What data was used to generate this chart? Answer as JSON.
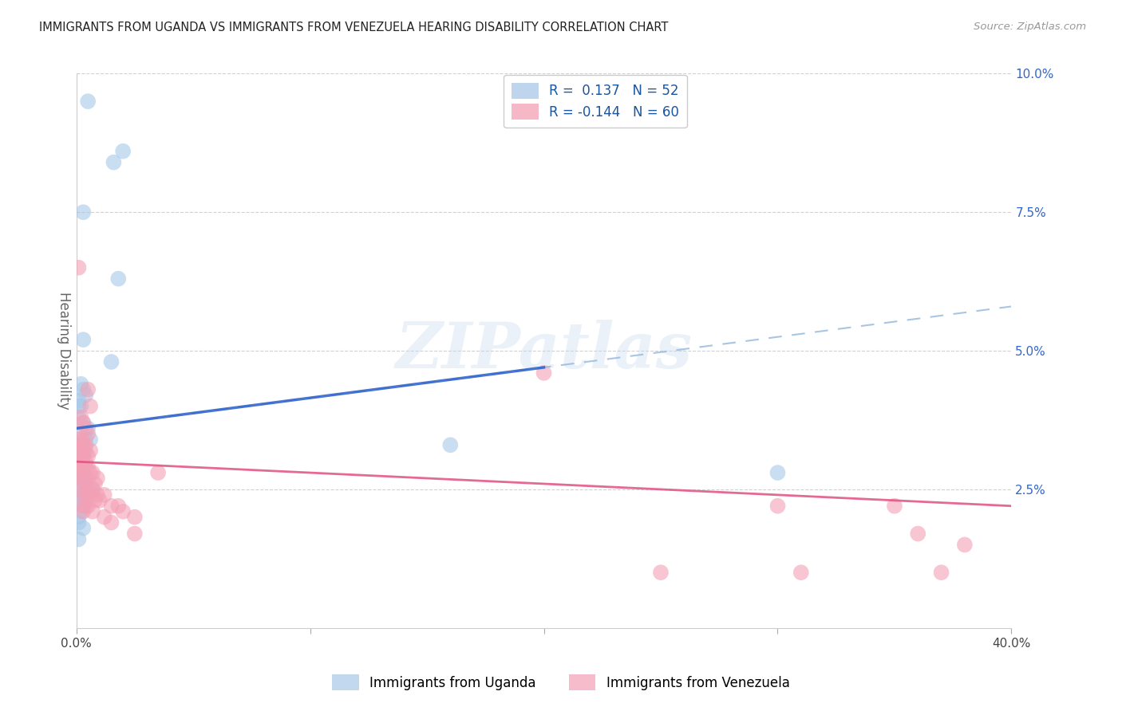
{
  "title": "IMMIGRANTS FROM UGANDA VS IMMIGRANTS FROM VENEZUELA HEARING DISABILITY CORRELATION CHART",
  "source": "Source: ZipAtlas.com",
  "ylabel": "Hearing Disability",
  "xlim": [
    0.0,
    0.4
  ],
  "ylim": [
    0.0,
    0.1
  ],
  "xticks": [
    0.0,
    0.1,
    0.2,
    0.3,
    0.4
  ],
  "yticks": [
    0.025,
    0.05,
    0.075,
    0.1
  ],
  "ytick_labels": [
    "2.5%",
    "5.0%",
    "7.5%",
    "10.0%"
  ],
  "xtick_labels": [
    "0.0%",
    "",
    "",
    "",
    "40.0%"
  ],
  "uganda_color": "#a8c8e8",
  "venezuela_color": "#f4a0b5",
  "uganda_line_color": "#3366cc",
  "venezuela_line_color": "#e05080",
  "dashed_line_color": "#99bbdd",
  "uganda_R": 0.137,
  "uganda_N": 52,
  "venezuela_R": -0.144,
  "venezuela_N": 60,
  "legend_label_uganda": "Immigrants from Uganda",
  "legend_label_venezuela": "Immigrants from Venezuela",
  "watermark_text": "ZIPatlas",
  "background_color": "#ffffff",
  "grid_color": "#cccccc",
  "uganda_scatter_x": [
    0.005,
    0.016,
    0.02,
    0.003,
    0.018,
    0.003,
    0.015,
    0.002,
    0.003,
    0.004,
    0.001,
    0.001,
    0.002,
    0.001,
    0.003,
    0.005,
    0.002,
    0.004,
    0.006,
    0.001,
    0.002,
    0.003,
    0.004,
    0.001,
    0.002,
    0.003,
    0.001,
    0.002,
    0.001,
    0.004,
    0.002,
    0.003,
    0.001,
    0.002,
    0.005,
    0.003,
    0.001,
    0.004,
    0.002,
    0.007,
    0.003,
    0.002,
    0.001,
    0.003,
    0.004,
    0.002,
    0.001,
    0.001,
    0.003,
    0.001,
    0.16,
    0.3
  ],
  "uganda_scatter_y": [
    0.095,
    0.084,
    0.086,
    0.075,
    0.063,
    0.052,
    0.048,
    0.044,
    0.043,
    0.042,
    0.041,
    0.04,
    0.04,
    0.038,
    0.037,
    0.036,
    0.035,
    0.034,
    0.034,
    0.033,
    0.033,
    0.032,
    0.032,
    0.031,
    0.031,
    0.031,
    0.03,
    0.03,
    0.03,
    0.029,
    0.029,
    0.028,
    0.027,
    0.027,
    0.027,
    0.026,
    0.026,
    0.025,
    0.025,
    0.025,
    0.024,
    0.024,
    0.023,
    0.022,
    0.022,
    0.021,
    0.02,
    0.019,
    0.018,
    0.016,
    0.033,
    0.028
  ],
  "venezuela_scatter_x": [
    0.001,
    0.005,
    0.006,
    0.002,
    0.003,
    0.004,
    0.005,
    0.001,
    0.002,
    0.003,
    0.004,
    0.001,
    0.002,
    0.006,
    0.003,
    0.005,
    0.001,
    0.002,
    0.004,
    0.001,
    0.003,
    0.005,
    0.007,
    0.002,
    0.006,
    0.003,
    0.009,
    0.001,
    0.004,
    0.008,
    0.002,
    0.005,
    0.007,
    0.003,
    0.006,
    0.009,
    0.012,
    0.004,
    0.008,
    0.01,
    0.003,
    0.005,
    0.015,
    0.018,
    0.003,
    0.007,
    0.02,
    0.012,
    0.025,
    0.015,
    0.2,
    0.035,
    0.025,
    0.3,
    0.35,
    0.38,
    0.36,
    0.25,
    0.31,
    0.37
  ],
  "venezuela_scatter_y": [
    0.065,
    0.043,
    0.04,
    0.038,
    0.037,
    0.036,
    0.035,
    0.034,
    0.034,
    0.033,
    0.033,
    0.032,
    0.032,
    0.032,
    0.031,
    0.031,
    0.03,
    0.03,
    0.03,
    0.029,
    0.029,
    0.029,
    0.028,
    0.028,
    0.028,
    0.027,
    0.027,
    0.027,
    0.026,
    0.026,
    0.025,
    0.025,
    0.025,
    0.024,
    0.024,
    0.024,
    0.024,
    0.023,
    0.023,
    0.023,
    0.022,
    0.022,
    0.022,
    0.022,
    0.021,
    0.021,
    0.021,
    0.02,
    0.02,
    0.019,
    0.046,
    0.028,
    0.017,
    0.022,
    0.022,
    0.015,
    0.017,
    0.01,
    0.01,
    0.01
  ],
  "uganda_line_x0": 0.0,
  "uganda_line_y0": 0.036,
  "uganda_line_x1": 0.2,
  "uganda_line_y1": 0.047,
  "uganda_line_solid_end_x": 0.2,
  "venezuela_line_x0": 0.0,
  "venezuela_line_y0": 0.03,
  "venezuela_line_x1": 0.4,
  "venezuela_line_y1": 0.022
}
